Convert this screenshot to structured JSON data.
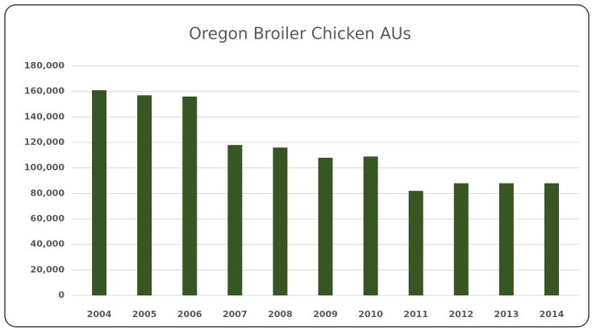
{
  "chart_data": {
    "type": "bar",
    "title": "Oregon Broiler Chicken AUs",
    "categories": [
      "2004",
      "2005",
      "2006",
      "2007",
      "2008",
      "2009",
      "2010",
      "2011",
      "2012",
      "2013",
      "2014"
    ],
    "values": [
      161000,
      157000,
      156000,
      118000,
      116000,
      108000,
      109000,
      82000,
      88000,
      88000,
      88000
    ],
    "color": "#375623",
    "ylim": [
      0,
      180000
    ],
    "yticks": [
      0,
      {
        "value": 20000,
        "label": "20,000"
      },
      {
        "value": 40000,
        "label": "40,000"
      },
      {
        "value": 60000,
        "label": "60,000"
      },
      {
        "value": 80000,
        "label": "80,000"
      },
      {
        "value": 100000,
        "label": "100,000"
      },
      {
        "value": 120000,
        "label": "120,000"
      },
      {
        "value": 140000,
        "label": "140,000"
      },
      {
        "value": 160000,
        "label": "160,000"
      },
      {
        "value": 180000,
        "label": "180,000"
      }
    ],
    "grid": true
  }
}
